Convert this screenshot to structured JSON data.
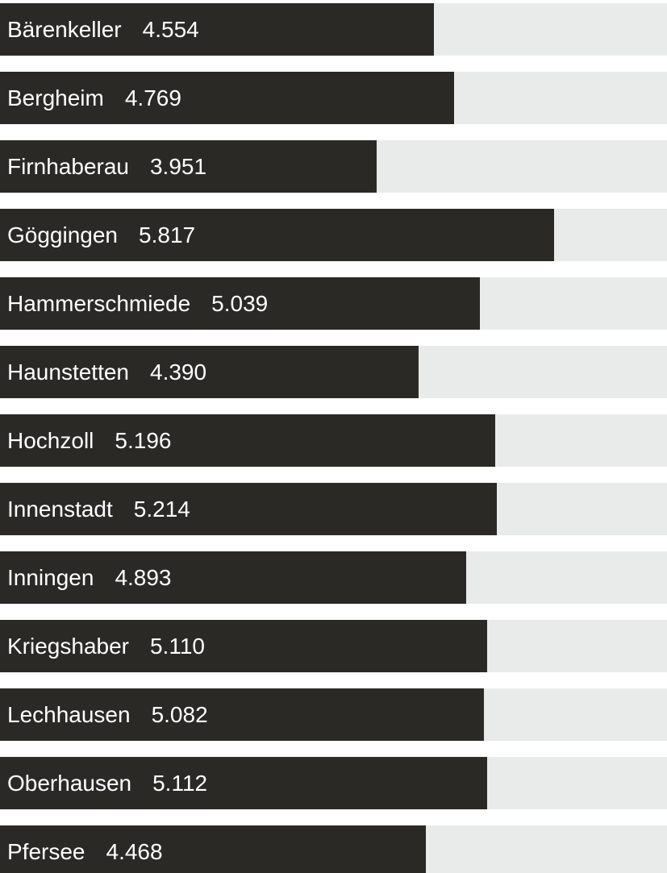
{
  "chart_data": {
    "type": "bar",
    "orientation": "horizontal",
    "title": "",
    "xlabel": "",
    "ylabel": "",
    "xlim": [
      0,
      7000
    ],
    "grid": false,
    "legend": false,
    "bar_color": "#2b2926",
    "track_color": "#e9ebea",
    "label_color": "#ffffff",
    "categories": [
      "Bärenkeller",
      "Bergheim",
      "Firnhaberau",
      "Göggingen",
      "Hammerschmiede",
      "Haunstetten",
      "Hochzoll",
      "Innenstadt",
      "Inningen",
      "Kriegshaber",
      "Lechhausen",
      "Oberhausen",
      "Pfersee"
    ],
    "values": [
      4554,
      4769,
      3951,
      5817,
      5039,
      4390,
      5196,
      5214,
      4893,
      5110,
      5082,
      5112,
      4468
    ],
    "value_labels": [
      "4.554",
      "4.769",
      "3.951",
      "5.817",
      "5.039",
      "4.390",
      "5.196",
      "5.214",
      "4.893",
      "5.110",
      "5.082",
      "5.112",
      "4.468"
    ]
  }
}
